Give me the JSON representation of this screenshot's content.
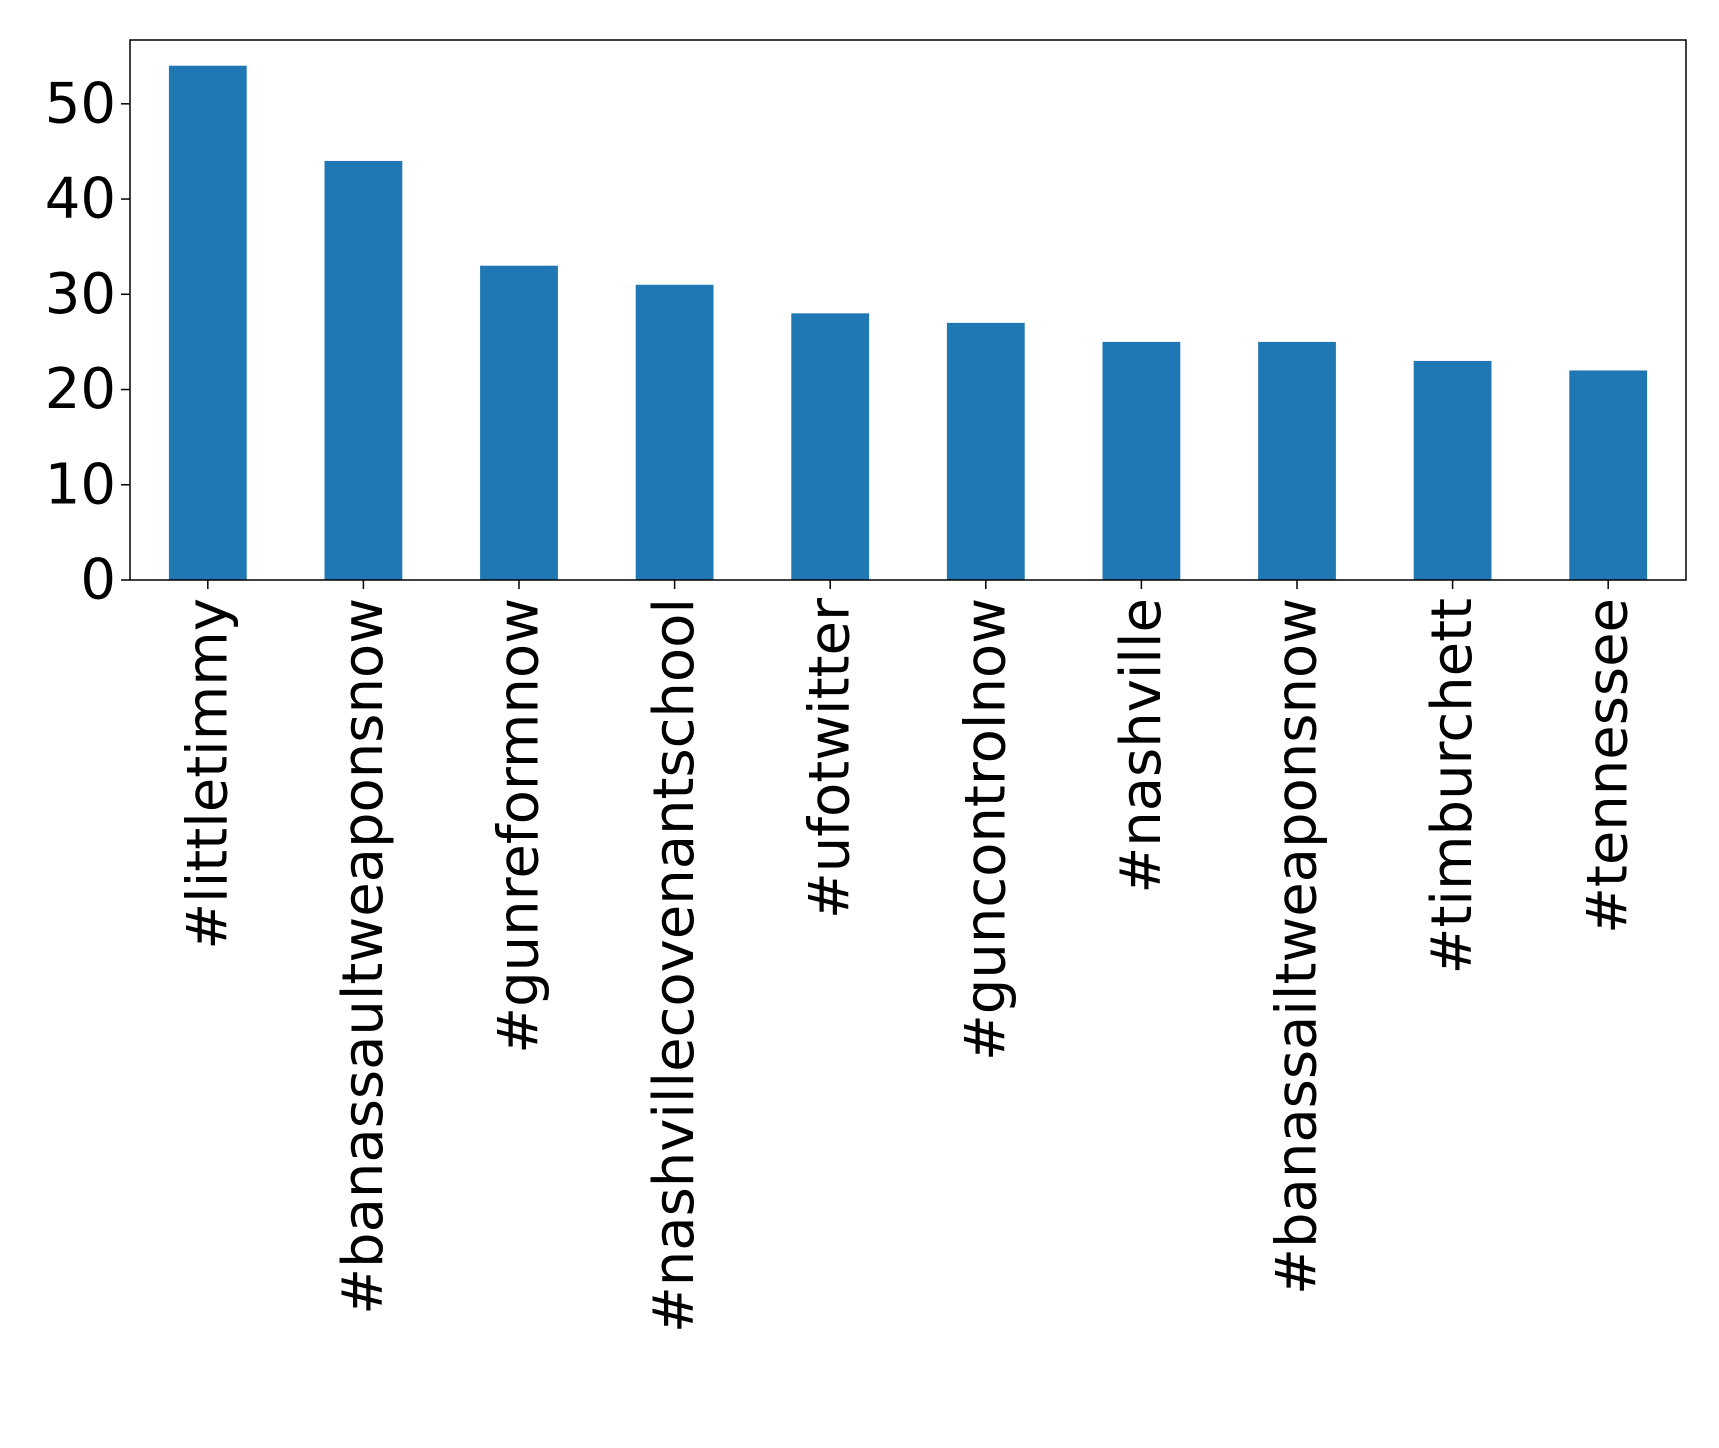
{
  "chart_data": {
    "type": "bar",
    "title": "",
    "xlabel": "",
    "ylabel": "",
    "categories": [
      "#littletimmy",
      "#banassaultweaponsnow",
      "#gunreformnow",
      "#nashvillecovenantschool",
      "#ufotwitter",
      "#guncontrolnow",
      "#nashville",
      "#banassailtweaponsnow",
      "#timburchett",
      "#tennessee"
    ],
    "values": [
      54,
      44,
      33,
      31,
      28,
      27,
      25,
      25,
      23,
      22
    ],
    "ylim": [
      0,
      56.7
    ],
    "yticks": [
      "0",
      "10",
      "20",
      "30",
      "40",
      "50"
    ],
    "bar_color": "#1f77b4",
    "grid": false,
    "legend": "none"
  }
}
